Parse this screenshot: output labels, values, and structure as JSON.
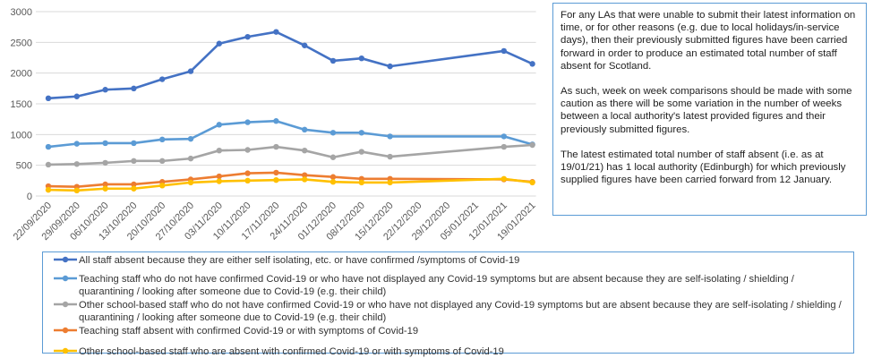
{
  "chart_data": {
    "type": "line",
    "ylim": [
      0,
      3000
    ],
    "y_ticks": [
      "0",
      "500",
      "1000",
      "1500",
      "2000",
      "2500",
      "3000"
    ],
    "grid": true,
    "legend_position": "bottom",
    "categories": [
      "22/09/2020",
      "29/09/2020",
      "06/10/2020",
      "13/10/2020",
      "20/10/2020",
      "27/10/2020",
      "03/11/2020",
      "10/11/2020",
      "17/11/2020",
      "24/11/2020",
      "01/12/2020",
      "08/12/2020",
      "15/12/2020",
      "22/12/2020",
      "29/12/2020",
      "05/01/2021",
      "12/01/2021",
      "19/01/2021"
    ],
    "series": [
      {
        "name": "All staff absent because they are either self isolating, etc. or have confirmed /symptoms of Covid-19",
        "color": "#4472c4",
        "values": [
          1590,
          1620,
          1730,
          1750,
          1900,
          2030,
          2480,
          2590,
          2670,
          2450,
          2200,
          2240,
          2110,
          null,
          null,
          null,
          2360,
          2150
        ]
      },
      {
        "name": "Teaching staff who do not have confirmed Covid-19 or who have not displayed any Covid-19 symptoms but are absent because they are self-isolating / shielding / quarantining / looking after someone due to Covid-19 (e.g. their child)",
        "color": "#5b9bd5",
        "values": [
          800,
          850,
          860,
          860,
          920,
          930,
          1160,
          1200,
          1220,
          1080,
          1030,
          1030,
          970,
          null,
          null,
          null,
          970,
          840
        ]
      },
      {
        "name": "Other school-based staff who do not have confirmed Covid-19 or who have not displayed any Covid-19 symptoms but are absent because they are self-isolating / shielding / quarantining / looking after someone due to Covid-19 (e.g. their child)",
        "color": "#a5a5a5",
        "values": [
          510,
          520,
          540,
          570,
          570,
          610,
          740,
          750,
          800,
          740,
          630,
          720,
          640,
          null,
          null,
          null,
          800,
          830
        ]
      },
      {
        "name": "Teaching staff absent with confirmed Covid-19 or with symptoms of Covid-19",
        "color": "#ed7d31",
        "values": [
          160,
          150,
          190,
          190,
          230,
          270,
          320,
          370,
          380,
          340,
          310,
          280,
          280,
          null,
          null,
          null,
          270,
          230
        ]
      },
      {
        "name": "Other school-based staff who are absent with confirmed Covid-19 or with symptoms of Covid-19",
        "color": "#ffc000",
        "values": [
          100,
          90,
          120,
          120,
          170,
          220,
          240,
          250,
          260,
          270,
          230,
          220,
          220,
          null,
          null,
          null,
          280,
          220
        ]
      }
    ]
  },
  "note": {
    "paragraphs": [
      "For any LAs that were unable to submit their latest information on time, or for other reasons (e.g. due to local holidays/in-service days), then their previously submitted figures have been carried forward in order to produce an estimated total number of staff absent for Scotland.",
      "As such, week on week comparisons should be made with some caution as there will be some variation in the number of weeks between a local authority's latest provided figures and their previously submitted figures.",
      "The latest estimated total number of staff absent (i.e. as at 19/01/21) has 1 local authority (Edinburgh) for which previously supplied figures have been carried forward from 12 January."
    ]
  }
}
